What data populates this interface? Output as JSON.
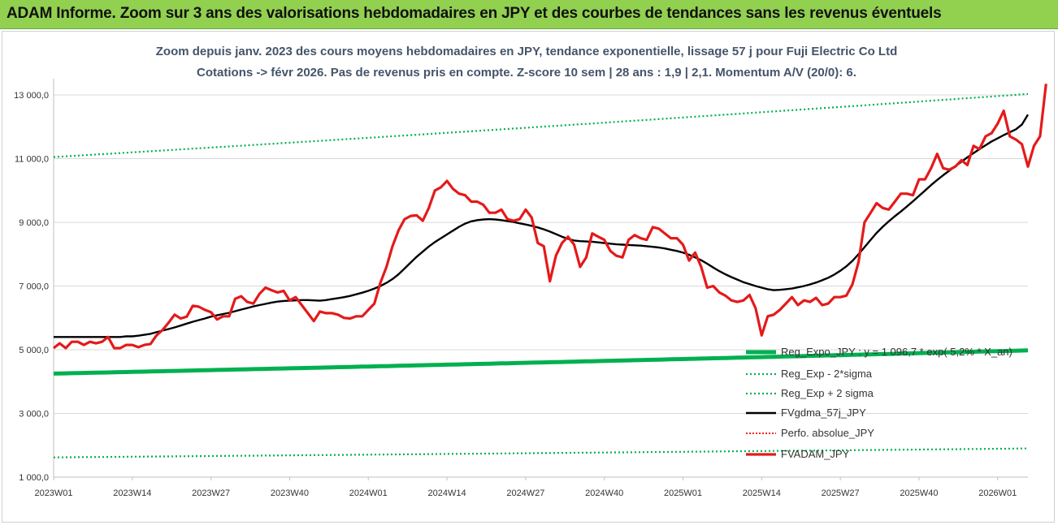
{
  "banner": {
    "title": "ADAM Informe. Zoom sur 3 ans des valorisations hebdomadaires en JPY et des courbes de tendances sans les revenus éventuels",
    "background": "#92d050"
  },
  "chart_data": {
    "type": "line",
    "title_line1": "Zoom depuis janv. 2023 des cours moyens hebdomadaires en JPY, tendance exponentielle, lissage 57 j pour Fuji Electric Co Ltd",
    "title_line2": "Cotations -> févr 2026.  Pas de revenus pris en compte. Z-score 10 sem | 28 ans : 1,9 | 2,1. Momentum A/V (20/0): 6.",
    "xlabel": "",
    "ylabel": "",
    "ylim": [
      1000,
      13500
    ],
    "y_ticks": [
      "1 000,0",
      "3 000,0",
      "5 000,0",
      "7 000,0",
      "9 000,0",
      "11 000,0",
      "13 000,0"
    ],
    "y_tick_values": [
      1000,
      3000,
      5000,
      7000,
      9000,
      11000,
      13000
    ],
    "x_ticks": [
      "2023W01",
      "2023W14",
      "2023W27",
      "2023W40",
      "2024W01",
      "2024W14",
      "2024W27",
      "2024W40",
      "2025W01",
      "2025W14",
      "2025W27",
      "2025W40",
      "2026W01"
    ],
    "grid": "horizontal",
    "legend_position": "right",
    "x_weeks": 162,
    "series": [
      {
        "name": "Reg_Expo_JPY : y = 1 096,7 * exp( 5,2% * X_an)",
        "color": "#00b050",
        "style": "thick",
        "start": 4250,
        "end": 4980
      },
      {
        "name": "Reg_Exp - 2*sigma",
        "color": "#00b050",
        "style": "dotted",
        "start": 1620,
        "end": 1900
      },
      {
        "name": "Reg_Exp + 2 sigma",
        "color": "#00b050",
        "style": "dotted",
        "start": 11050,
        "end": 13030
      },
      {
        "name": "FVgdma_57j_JPY",
        "color": "#000000",
        "style": "solid",
        "values": [
          5400,
          5400,
          5400,
          5400,
          5400,
          5400,
          5400,
          5400,
          5400,
          5400,
          5400,
          5400,
          5420,
          5420,
          5440,
          5470,
          5500,
          5550,
          5600,
          5650,
          5700,
          5760,
          5820,
          5880,
          5930,
          5980,
          6040,
          6080,
          6120,
          6160,
          6210,
          6260,
          6310,
          6360,
          6400,
          6440,
          6480,
          6510,
          6530,
          6540,
          6550,
          6560,
          6560,
          6550,
          6540,
          6560,
          6590,
          6620,
          6650,
          6690,
          6740,
          6790,
          6850,
          6920,
          7000,
          7100,
          7220,
          7370,
          7550,
          7740,
          7920,
          8080,
          8240,
          8380,
          8500,
          8620,
          8740,
          8860,
          8960,
          9030,
          9070,
          9090,
          9100,
          9090,
          9070,
          9040,
          9010,
          8970,
          8930,
          8890,
          8840,
          8780,
          8710,
          8630,
          8550,
          8480,
          8430,
          8410,
          8400,
          8390,
          8370,
          8350,
          8330,
          8310,
          8300,
          8290,
          8280,
          8270,
          8250,
          8230,
          8210,
          8180,
          8140,
          8100,
          8050,
          7980,
          7900,
          7810,
          7700,
          7580,
          7470,
          7370,
          7280,
          7200,
          7120,
          7060,
          7000,
          6950,
          6900,
          6870,
          6880,
          6900,
          6920,
          6960,
          7000,
          7050,
          7110,
          7180,
          7260,
          7360,
          7480,
          7620,
          7790,
          8000,
          8220,
          8450,
          8670,
          8860,
          9030,
          9190,
          9340,
          9500,
          9660,
          9830,
          10000,
          10170,
          10330,
          10480,
          10620,
          10760,
          10900,
          11040,
          11170,
          11300,
          11420,
          11540,
          11640,
          11740,
          11830,
          11920,
          12070,
          12380
        ]
      },
      {
        "name": "Perfo. absolue_JPY",
        "color": "#ff0000",
        "style": "dotted",
        "values": []
      },
      {
        "name": "FVADAM_JPY",
        "color": "#e41a1a",
        "style": "thick",
        "values": [
          5050,
          5200,
          5050,
          5250,
          5250,
          5150,
          5250,
          5200,
          5250,
          5400,
          5050,
          5050,
          5150,
          5150,
          5080,
          5150,
          5180,
          5450,
          5620,
          5850,
          6100,
          5980,
          6040,
          6380,
          6350,
          6250,
          6180,
          5950,
          6050,
          6050,
          6600,
          6680,
          6500,
          6450,
          6750,
          6950,
          6870,
          6800,
          6850,
          6550,
          6650,
          6400,
          6150,
          5900,
          6200,
          6150,
          6150,
          6100,
          6000,
          5980,
          6050,
          6050,
          6250,
          6450,
          7100,
          7600,
          8250,
          8750,
          9100,
          9200,
          9220,
          9050,
          9450,
          10000,
          10100,
          10300,
          10050,
          9900,
          9850,
          9650,
          9650,
          9550,
          9300,
          9300,
          9400,
          9100,
          9050,
          9100,
          9400,
          9150,
          8350,
          8250,
          7150,
          7950,
          8350,
          8550,
          8300,
          7600,
          7900,
          8650,
          8550,
          8450,
          8100,
          7950,
          7900,
          8450,
          8600,
          8500,
          8450,
          8850,
          8800,
          8650,
          8500,
          8500,
          8300,
          7800,
          8050,
          7600,
          6950,
          7000,
          6800,
          6700,
          6550,
          6500,
          6550,
          6720,
          6300,
          5450,
          6050,
          6100,
          6250,
          6450,
          6650,
          6400,
          6550,
          6500,
          6630,
          6400,
          6450,
          6650,
          6650,
          6700,
          7050,
          7750,
          9000,
          9300,
          9600,
          9450,
          9400,
          9650,
          9900,
          9900,
          9850,
          10350,
          10350,
          10700,
          11150,
          10700,
          10650,
          10750,
          10950,
          10800,
          11400,
          11300,
          11700,
          11800,
          12100,
          12500,
          11700,
          11600,
          11450,
          10750,
          11400,
          11700,
          13350
        ]
      }
    ]
  }
}
